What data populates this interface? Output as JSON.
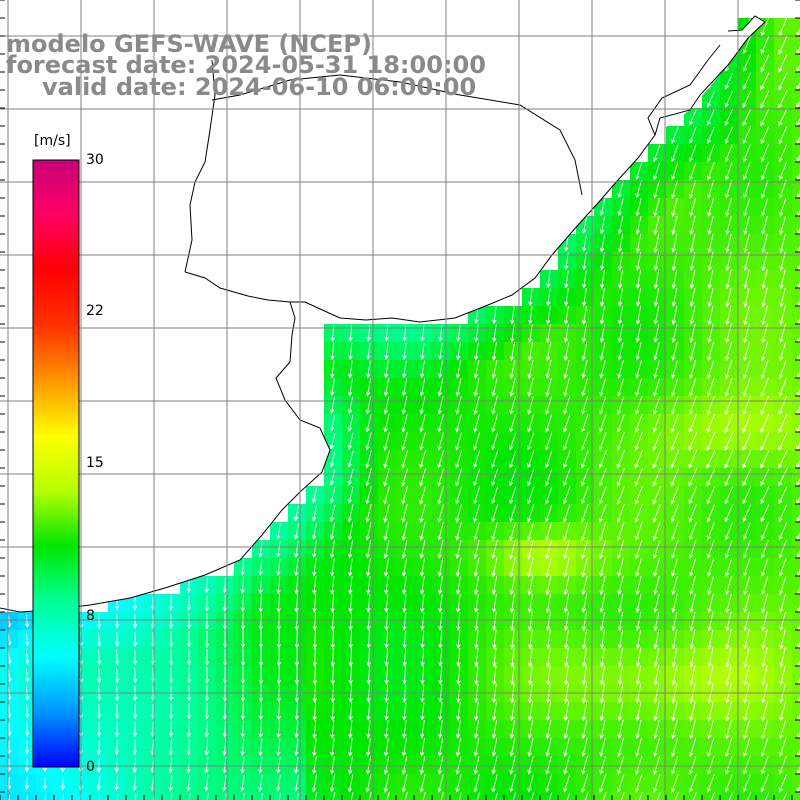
{
  "header": {
    "line1": "modelo GEFS-WAVE (NCEP)",
    "line2": "forecast date: 2024-05-31 18:00:00",
    "line3": "valid date: 2024-06-10 06:00:00"
  },
  "colorbar": {
    "unit": "[m/s]",
    "ticks": [
      {
        "value": 30,
        "label": "30"
      },
      {
        "value": 22,
        "label": "22"
      },
      {
        "value": 15,
        "label": "15"
      },
      {
        "value": 8,
        "label": "8"
      },
      {
        "value": 0,
        "label": "0"
      }
    ],
    "min": 0,
    "max": 30,
    "colors": [
      "#0000ff",
      "#0096ff",
      "#00ffff",
      "#00ff96",
      "#00e600",
      "#b4ff00",
      "#ffff00",
      "#ff9600",
      "#ff3200",
      "#ff0000",
      "#ff0064",
      "#c80078"
    ]
  },
  "map": {
    "variable": "wind speed",
    "arrow_direction": "toward south-southwest",
    "land_color": "#ffffff",
    "grid_color": "#808080",
    "coastline_color": "#000000"
  }
}
